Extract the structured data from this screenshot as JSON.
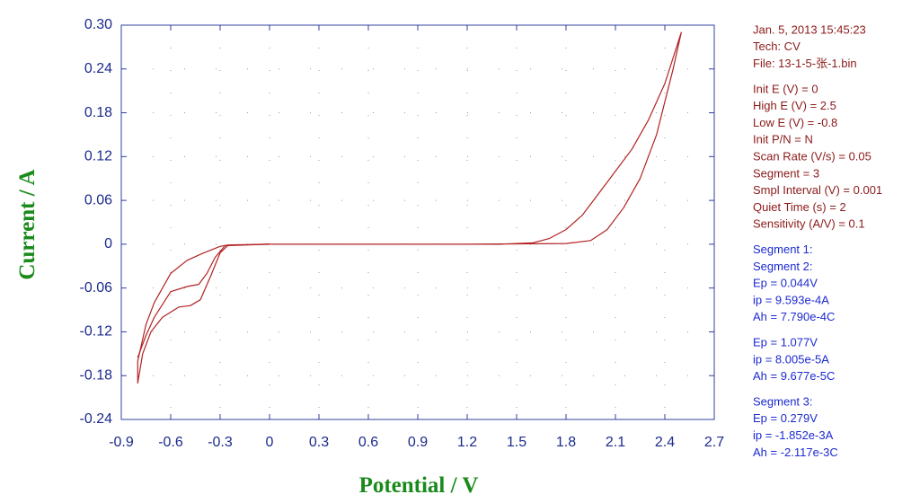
{
  "chart_data": {
    "type": "line",
    "x_label": "Potential / V",
    "y_label": "Current / A",
    "xlim": [
      -0.9,
      2.7
    ],
    "xticks": [
      -0.9,
      -0.6,
      -0.3,
      0,
      0.3,
      0.6,
      0.9,
      1.2,
      1.5,
      1.8,
      2.1,
      2.4,
      2.7
    ],
    "ylim": [
      -0.24,
      0.3
    ],
    "yticks": [
      {
        "value": 0.3,
        "label": "0.30"
      },
      0.24,
      0.18,
      0.12,
      0.06,
      0,
      -0.06,
      -0.12,
      -0.18,
      -0.24
    ],
    "grid": true,
    "series": [
      {
        "color": "#b22222",
        "x": [
          0,
          0.6,
          1.2,
          1.8,
          1.95,
          2.05,
          2.15,
          2.25,
          2.35,
          2.45,
          2.5,
          2.4,
          2.3,
          2.2,
          2.1,
          2.0,
          1.9,
          1.8,
          1.7,
          1.6,
          1.4,
          1.0,
          0.5,
          0,
          -0.25,
          -0.3,
          -0.4,
          -0.5,
          -0.6,
          -0.7,
          -0.75,
          -0.8,
          -0.8,
          -0.77,
          -0.72,
          -0.65,
          -0.55,
          -0.48,
          -0.42,
          -0.36,
          -0.3,
          -0.25,
          0
        ],
        "values": [
          0,
          0,
          0,
          0.001,
          0.005,
          0.02,
          0.05,
          0.09,
          0.15,
          0.24,
          0.29,
          0.22,
          0.17,
          0.13,
          0.1,
          0.07,
          0.04,
          0.02,
          0.008,
          0.002,
          0,
          0,
          0,
          0,
          -0.001,
          -0.003,
          -0.012,
          -0.022,
          -0.04,
          -0.08,
          -0.11,
          -0.16,
          -0.19,
          -0.15,
          -0.12,
          -0.1,
          -0.086,
          -0.084,
          -0.076,
          -0.045,
          -0.012,
          -0.001,
          0
        ]
      },
      {
        "color": "#b22222",
        "x": [
          -0.8,
          -0.75,
          -0.7,
          -0.6,
          -0.5,
          -0.43,
          -0.38,
          -0.33,
          -0.27,
          0
        ],
        "values": [
          -0.155,
          -0.125,
          -0.1,
          -0.065,
          -0.058,
          -0.055,
          -0.04,
          -0.018,
          -0.002,
          0
        ]
      }
    ],
    "annotations": [
      {
        "color": "#8b1a1a",
        "lines": [
          "Jan. 5, 2013   15:45:23",
          "Tech: CV",
          "File: 13-1-5-张-1.bin"
        ]
      },
      {
        "color": "#8b1a1a",
        "lines": [
          "Init E (V) = 0",
          "High E (V) = 2.5",
          "Low E (V) = -0.8",
          "Init P/N = N",
          "Scan Rate (V/s) = 0.05",
          "Segment = 3",
          "Smpl Interval (V) = 0.001",
          "Quiet Time (s) = 2",
          "Sensitivity (A/V) = 0.1"
        ]
      },
      {
        "color": "#1c2ad0",
        "lines": [
          "Segment 1:",
          "Segment 2:",
          "Ep = 0.044V",
          "ip = 9.593e-4A",
          "Ah = 7.790e-4C"
        ]
      },
      {
        "color": "#1c2ad0",
        "lines": [
          "Ep = 1.077V",
          "ip = 8.005e-5A",
          "Ah = 9.677e-5C"
        ]
      },
      {
        "color": "#1c2ad0",
        "lines": [
          "Segment 3:",
          "Ep = 0.279V",
          "ip = -1.852e-3A",
          "Ah = -2.117e-3C"
        ]
      }
    ]
  }
}
